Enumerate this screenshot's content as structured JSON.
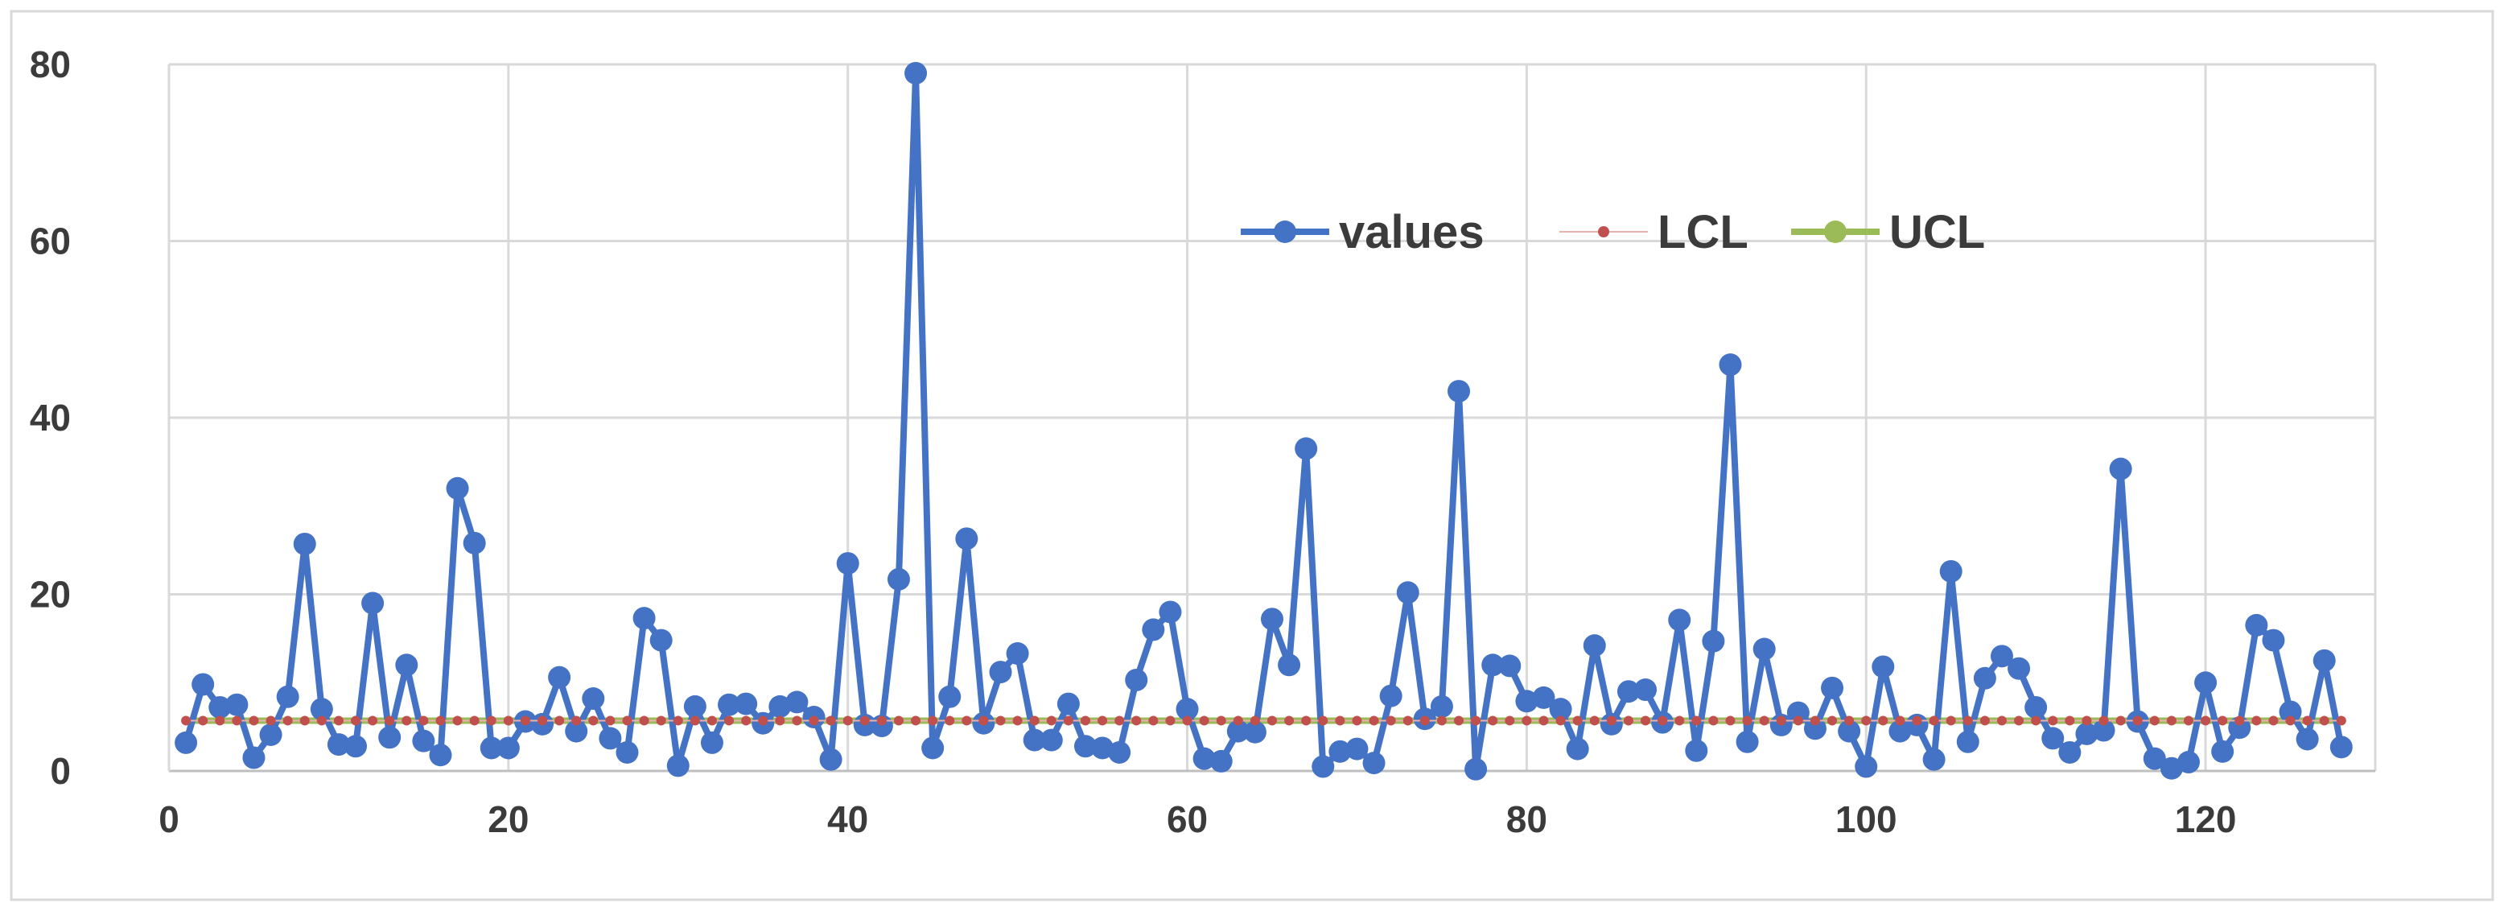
{
  "chart_data": {
    "type": "line",
    "title": "",
    "xlabel": "",
    "ylabel": "",
    "xlim": [
      0,
      130
    ],
    "ylim": [
      0,
      80
    ],
    "x_ticks": [
      0,
      20,
      40,
      60,
      80,
      100,
      120
    ],
    "y_ticks": [
      0,
      20,
      40,
      60,
      80
    ],
    "grid": true,
    "legend_position": "top-center",
    "series": [
      {
        "name": "values",
        "color": "#4472c4",
        "x_start": 1,
        "values": [
          3.2,
          9.8,
          7.2,
          7.5,
          1.5,
          4.1,
          8.4,
          25.7,
          7.0,
          3.0,
          2.8,
          19.0,
          3.8,
          12.0,
          3.4,
          1.8,
          32.0,
          25.8,
          2.6,
          2.6,
          5.6,
          5.3,
          10.6,
          4.5,
          8.2,
          3.7,
          2.1,
          17.3,
          14.8,
          0.6,
          7.3,
          3.2,
          7.5,
          7.6,
          5.4,
          7.3,
          7.8,
          6.1,
          1.3,
          23.5,
          5.2,
          5.1,
          21.7,
          79.0,
          2.6,
          8.4,
          26.3,
          5.4,
          11.2,
          13.3,
          3.5,
          3.5,
          7.6,
          2.8,
          2.6,
          2.1,
          10.3,
          16.0,
          18.0,
          7.0,
          1.4,
          1.1,
          4.5,
          4.4,
          17.2,
          12.0,
          36.5,
          0.5,
          2.2,
          2.5,
          0.9,
          8.5,
          20.2,
          5.9,
          7.3,
          43.0,
          0.2,
          12.0,
          11.9,
          7.9,
          8.3,
          7.0,
          2.5,
          14.2,
          5.3,
          9.0,
          9.2,
          5.5,
          17.1,
          2.3,
          14.7,
          46.0,
          3.3,
          13.8,
          5.2,
          6.6,
          4.8,
          9.4,
          4.5,
          0.5,
          11.8,
          4.5,
          5.2,
          1.3,
          22.6,
          3.3,
          10.5,
          13.0,
          11.6,
          7.2,
          3.7,
          2.1,
          4.2,
          4.6,
          34.2,
          5.6,
          1.4,
          0.3,
          1.0,
          10.0,
          2.2,
          4.9,
          16.5,
          14.8,
          6.7,
          3.6,
          12.5,
          2.7
        ]
      },
      {
        "name": "LCL",
        "color": "#c0504d",
        "x_start": 1,
        "x_end": 128,
        "constant": 5.7
      },
      {
        "name": "UCL",
        "color": "#9bbb59",
        "x_start": 1,
        "x_end": 128,
        "constant": 5.7
      }
    ]
  }
}
